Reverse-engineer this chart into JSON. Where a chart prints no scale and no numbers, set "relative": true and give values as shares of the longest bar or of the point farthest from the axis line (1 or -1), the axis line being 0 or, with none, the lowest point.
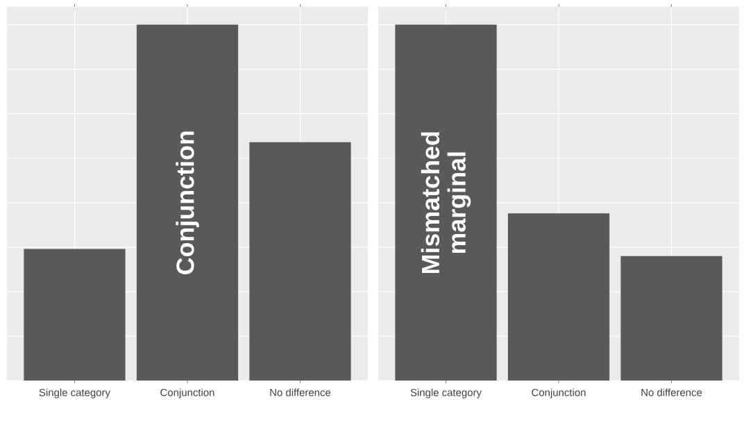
{
  "chart_data": [
    {
      "type": "bar",
      "relative": true,
      "categories": [
        "Single category",
        "Conjunction",
        "No difference"
      ],
      "values": [
        0.37,
        1,
        0.67
      ],
      "color": "#595959",
      "grid": true,
      "annotations": [
        "Conjunction"
      ]
    },
    {
      "type": "bar",
      "relative": true,
      "categories": [
        "Single category",
        "Conjunction",
        "No difference"
      ],
      "values": [
        1,
        0.47,
        0.35
      ],
      "color": "#595959",
      "grid": true,
      "annotations": [
        "Mismatched marginal"
      ]
    }
  ]
}
